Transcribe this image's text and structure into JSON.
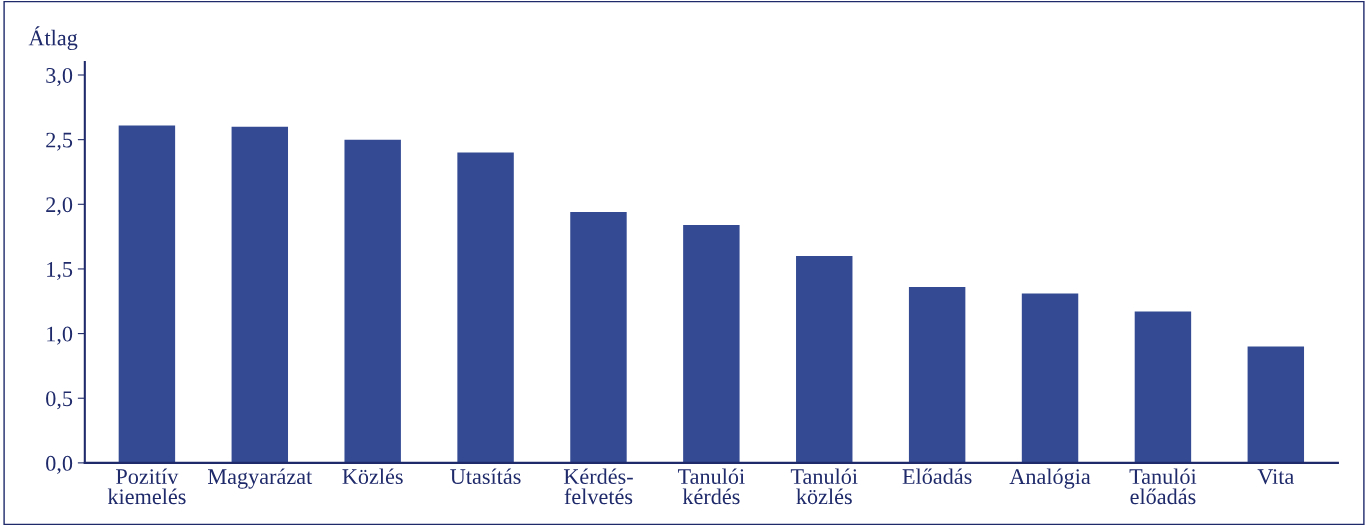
{
  "chart_data": {
    "type": "bar",
    "ylabel": "Átlag",
    "categories": [
      "Pozitív\nkiemelés",
      "Magyarázat",
      "Közlés",
      "Utasítás",
      "Kérdés-\nfelvetés",
      "Tanulói\nkérdés",
      "Tanulói\nközlés",
      "Előadás",
      "Analógia",
      "Tanulói\nelőadás",
      "Vita"
    ],
    "values": [
      2.61,
      2.6,
      2.5,
      2.4,
      1.94,
      1.84,
      1.6,
      1.36,
      1.31,
      1.17,
      0.9
    ],
    "color": "#344b94",
    "ylim": [
      0,
      3.1
    ],
    "yticks": [
      {
        "value": 0,
        "label": "0,0"
      },
      {
        "value": 0.5,
        "label": "0,5"
      },
      {
        "value": 1,
        "label": "1,0"
      },
      {
        "value": 1.5,
        "label": "1,5"
      },
      {
        "value": 2,
        "label": "2,0"
      },
      {
        "value": 2.5,
        "label": "2,5"
      },
      {
        "value": 3,
        "label": "3,0"
      }
    ],
    "grid": false,
    "legend": false
  }
}
